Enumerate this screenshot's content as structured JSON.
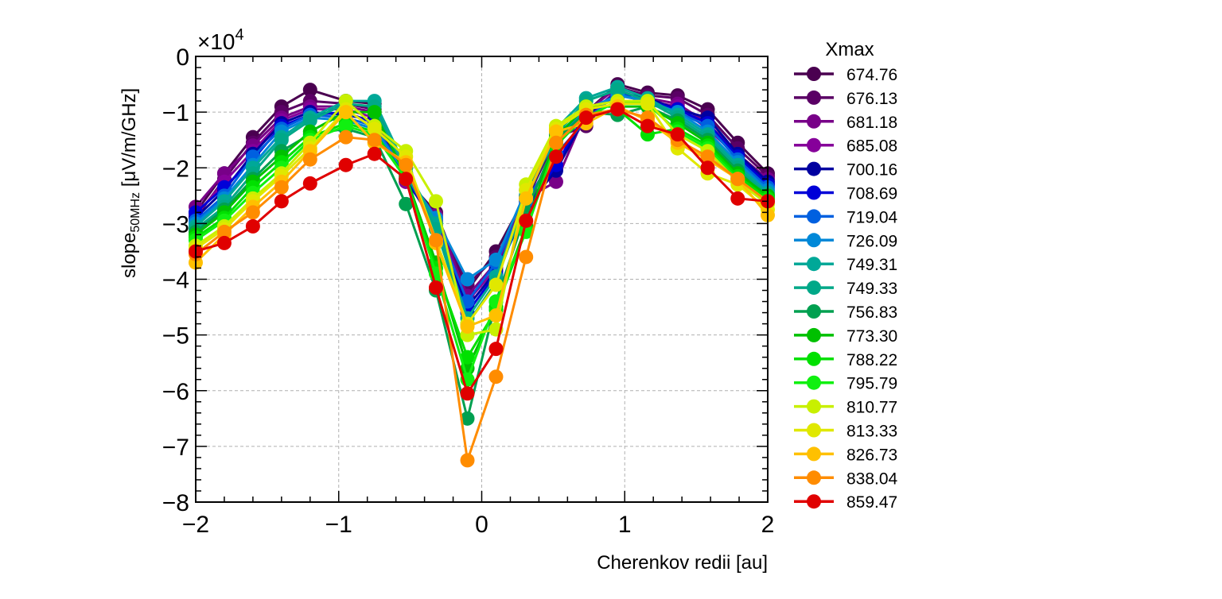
{
  "chart_data": {
    "type": "line",
    "xlabel": "Cherenkov redii [au]",
    "ylabel_main": "slope",
    "ylabel_sub": "50MHz",
    "ylabel_rest": " [μV/m/GHz]",
    "y_multiplier": "×10",
    "y_multiplier_exp": "4",
    "xlim": [
      -2,
      2
    ],
    "ylim": [
      -80000,
      0
    ],
    "xticks": [
      -2,
      -1,
      0,
      1,
      2
    ],
    "xtick_labels": [
      "−2",
      "−1",
      "0",
      "1",
      "2"
    ],
    "yticks": [
      0,
      -10000,
      -20000,
      -30000,
      -40000,
      -50000,
      -60000,
      -70000,
      -80000
    ],
    "ytick_labels": [
      "0",
      "−1",
      "−2",
      "−3",
      "−4",
      "−5",
      "−6",
      "−7",
      "−8"
    ],
    "grid": true,
    "legend_title": "Xmax",
    "legend_position": "outside-right",
    "x": [
      -2.0,
      -1.8,
      -1.6,
      -1.4,
      -1.2,
      -0.95,
      -0.75,
      -0.53,
      -0.32,
      -0.1,
      0.1,
      0.31,
      0.52,
      0.73,
      0.95,
      1.16,
      1.37,
      1.58,
      1.79,
      2.0
    ],
    "series": [
      {
        "name": "674.76",
        "color": "#4a0050",
        "values": [
          -28000,
          -21000,
          -14500,
          -9000,
          -6000,
          -8000,
          -8500,
          -22000,
          -28000,
          -42000,
          -35000,
          -25000,
          -14000,
          -10000,
          -5000,
          -6500,
          -7000,
          -9500,
          -15500,
          -21000
        ]
      },
      {
        "name": "676.13",
        "color": "#5a0065",
        "values": [
          -29000,
          -22000,
          -15500,
          -10000,
          -8000,
          -8500,
          -9500,
          -22500,
          -29000,
          -41000,
          -36000,
          -26000,
          -14500,
          -12500,
          -5500,
          -7000,
          -7500,
          -10500,
          -16500,
          -21500
        ]
      },
      {
        "name": "681.18",
        "color": "#780088",
        "values": [
          -27000,
          -21000,
          -16000,
          -11000,
          -9000,
          -9000,
          -10000,
          -22000,
          -28500,
          -43000,
          -37000,
          -25500,
          -22500,
          -10000,
          -5500,
          -7500,
          -8500,
          -12000,
          -17500,
          -22000
        ]
      },
      {
        "name": "685.08",
        "color": "#86009a",
        "values": [
          -28500,
          -22500,
          -17000,
          -11500,
          -9500,
          -9500,
          -11000,
          -22500,
          -29500,
          -44000,
          -38000,
          -26500,
          -20000,
          -11000,
          -6000,
          -8000,
          -9000,
          -13000,
          -18000,
          -23000
        ]
      },
      {
        "name": "700.16",
        "color": "#0000a0",
        "values": [
          -29000,
          -24000,
          -17500,
          -12000,
          -10000,
          -10500,
          -11500,
          -22000,
          -30500,
          -45000,
          -38500,
          -27000,
          -20500,
          -10500,
          -6500,
          -7500,
          -9500,
          -11000,
          -17500,
          -22500
        ]
      },
      {
        "name": "708.69",
        "color": "#0000d8",
        "values": [
          -28000,
          -23500,
          -18500,
          -12500,
          -10500,
          -10000,
          -12000,
          -21500,
          -31000,
          -46000,
          -39000,
          -27500,
          -19500,
          -10000,
          -7000,
          -8000,
          -9500,
          -12000,
          -18000,
          -23000
        ]
      },
      {
        "name": "719.04",
        "color": "#0060e0",
        "values": [
          -29500,
          -25000,
          -18000,
          -13000,
          -10500,
          -11000,
          -12500,
          -21000,
          -30000,
          -44000,
          -37000,
          -26000,
          -17500,
          -11500,
          -6500,
          -8500,
          -10000,
          -12500,
          -18500,
          -23500
        ]
      },
      {
        "name": "726.09",
        "color": "#0088d8",
        "values": [
          -30000,
          -25500,
          -19500,
          -13500,
          -11000,
          -11500,
          -13000,
          -21000,
          -29000,
          -40000,
          -36500,
          -24000,
          -15000,
          -9500,
          -7000,
          -8000,
          -10000,
          -13500,
          -19000,
          -24000
        ]
      },
      {
        "name": "749.31",
        "color": "#00a898",
        "values": [
          -30500,
          -26000,
          -20000,
          -14500,
          -11000,
          -8000,
          -8000,
          -20000,
          -30000,
          -47000,
          -39500,
          -25000,
          -13000,
          -7500,
          -5500,
          -7500,
          -10500,
          -14000,
          -19500,
          -24500
        ]
      },
      {
        "name": "749.33",
        "color": "#00a888",
        "values": [
          -31000,
          -27000,
          -21000,
          -15000,
          -11500,
          -8500,
          -9000,
          -21000,
          -31000,
          -48000,
          -40500,
          -25500,
          -14000,
          -8000,
          -6000,
          -8000,
          -11000,
          -14500,
          -20000,
          -25000
        ]
      },
      {
        "name": "756.83",
        "color": "#00a050",
        "values": [
          -31500,
          -27500,
          -22000,
          -17000,
          -14000,
          -13000,
          -14500,
          -26500,
          -42000,
          -65000,
          -44000,
          -28000,
          -15000,
          -10000,
          -10500,
          -9000,
          -11500,
          -15000,
          -20500,
          -25500
        ]
      },
      {
        "name": "773.30",
        "color": "#00c000",
        "values": [
          -32000,
          -28000,
          -22500,
          -18000,
          -13500,
          -10000,
          -10000,
          -21500,
          -37000,
          -56000,
          -45000,
          -30500,
          -14500,
          -9000,
          -9000,
          -9000,
          -12000,
          -15500,
          -21000,
          -25000
        ]
      },
      {
        "name": "788.22",
        "color": "#00e000",
        "values": [
          -32500,
          -29000,
          -23500,
          -19000,
          -14500,
          -12000,
          -13500,
          -22000,
          -38000,
          -54000,
          -45500,
          -31000,
          -16000,
          -10500,
          -9500,
          -14000,
          -13000,
          -16000,
          -21500,
          -25500
        ]
      },
      {
        "name": "795.79",
        "color": "#10f010",
        "values": [
          -33000,
          -29500,
          -24500,
          -20000,
          -15000,
          -12500,
          -14000,
          -22000,
          -39000,
          -58000,
          -44000,
          -31500,
          -15500,
          -11000,
          -8000,
          -8500,
          -13500,
          -16500,
          -22000,
          -26000
        ]
      },
      {
        "name": "810.77",
        "color": "#c8f000",
        "values": [
          -34000,
          -30500,
          -25500,
          -21000,
          -15500,
          -8000,
          -12500,
          -17000,
          -26000,
          -50000,
          -49000,
          -23000,
          -12500,
          -9000,
          -8000,
          -8000,
          -14000,
          -17000,
          -22500,
          -26500
        ]
      },
      {
        "name": "813.33",
        "color": "#e0e800",
        "values": [
          -34500,
          -31000,
          -26000,
          -21500,
          -16500,
          -9500,
          -13000,
          -18000,
          -33000,
          -48000,
          -41000,
          -24000,
          -13000,
          -9500,
          -8500,
          -8500,
          -16500,
          -21000,
          -23000,
          -27500
        ]
      },
      {
        "name": "826.73",
        "color": "#ffc000",
        "values": [
          -37000,
          -32000,
          -27000,
          -22500,
          -17000,
          -10000,
          -15500,
          -19000,
          -33500,
          -48500,
          -46500,
          -25500,
          -13500,
          -12000,
          -9000,
          -11500,
          -15500,
          -18500,
          -22000,
          -28500
        ]
      },
      {
        "name": "838.04",
        "color": "#ff8c00",
        "values": [
          -35500,
          -31500,
          -28000,
          -23500,
          -18500,
          -14500,
          -15000,
          -19500,
          -33000,
          -72500,
          -57500,
          -36000,
          -15500,
          -10500,
          -9500,
          -11000,
          -15000,
          -18000,
          -22000,
          -26000
        ]
      },
      {
        "name": "859.47",
        "color": "#e00000",
        "values": [
          -35000,
          -33500,
          -30500,
          -26000,
          -22800,
          -19500,
          -17500,
          -22000,
          -41500,
          -60500,
          -52500,
          -29500,
          -18000,
          -11000,
          -9500,
          -12500,
          -14000,
          -20000,
          -25500,
          -26000
        ]
      }
    ]
  }
}
